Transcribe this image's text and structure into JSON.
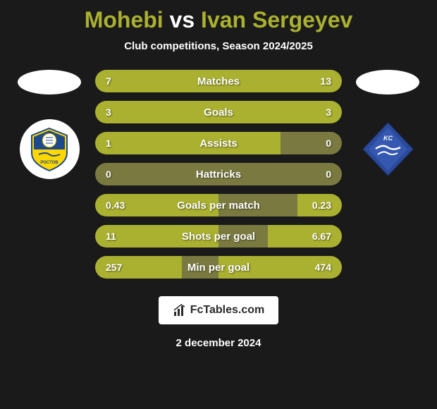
{
  "header": {
    "player1": "Mohebi",
    "vs": "vs",
    "player2": "Ivan Sergeyev",
    "subtitle": "Club competitions, Season 2024/2025"
  },
  "teams": {
    "left": {
      "name": "FC Rostov",
      "badge_bg": "#ffffff",
      "badge_main_color": "#1e4a8c",
      "badge_accent_color": "#ffd700"
    },
    "right": {
      "name": "Krylia Sovetov",
      "badge_bg": "transparent",
      "badge_main_color": "#2b4a9c",
      "badge_accent_color": "#ffffff"
    }
  },
  "stats": [
    {
      "label": "Matches",
      "left_value": "7",
      "right_value": "13",
      "left_raw": 7,
      "right_raw": 13,
      "left_pct": 35,
      "right_pct": 65
    },
    {
      "label": "Goals",
      "left_value": "3",
      "right_value": "3",
      "left_raw": 3,
      "right_raw": 3,
      "left_pct": 50,
      "right_pct": 50
    },
    {
      "label": "Assists",
      "left_value": "1",
      "right_value": "0",
      "left_raw": 1,
      "right_raw": 0,
      "left_pct": 75,
      "right_pct": 0
    },
    {
      "label": "Hattricks",
      "left_value": "0",
      "right_value": "0",
      "left_raw": 0,
      "right_raw": 0,
      "left_pct": 0,
      "right_pct": 0
    },
    {
      "label": "Goals per match",
      "left_value": "0.43",
      "right_value": "0.23",
      "left_raw": 0.43,
      "right_raw": 0.23,
      "left_pct": 50,
      "right_pct": 18
    },
    {
      "label": "Shots per goal",
      "left_value": "11",
      "right_value": "6.67",
      "left_raw": 11,
      "right_raw": 6.67,
      "left_pct": 50,
      "right_pct": 30
    },
    {
      "label": "Min per goal",
      "left_value": "257",
      "right_value": "474",
      "left_raw": 257,
      "right_raw": 474,
      "left_pct": 35,
      "right_pct": 50
    }
  ],
  "colors": {
    "background": "#1a1a1a",
    "accent": "#aab030",
    "bar_bg": "#7a7a40",
    "bar_fill": "#aab030",
    "text_white": "#ffffff"
  },
  "footer": {
    "logo_text": "FcTables.com",
    "date": "2 december 2024"
  }
}
